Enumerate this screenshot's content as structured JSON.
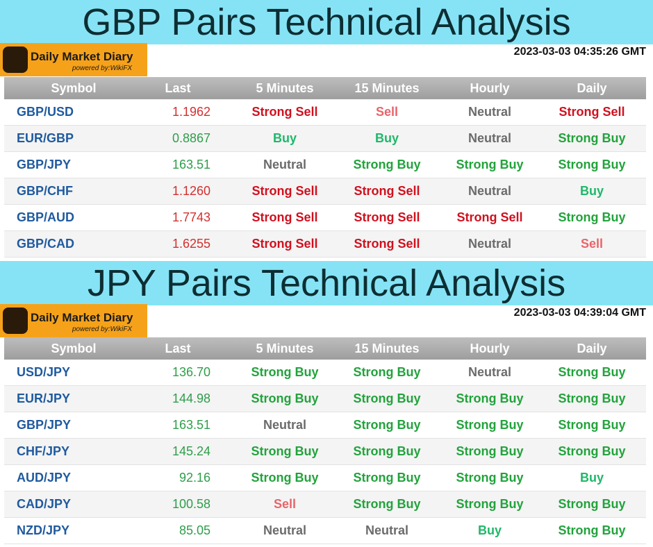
{
  "signal_colors": {
    "Strong Sell": "#d0101e",
    "Sell": "#e8646a",
    "Neutral": "#6b6b6b",
    "Buy": "#1fb86a",
    "Strong Buy": "#22a33c"
  },
  "sections": [
    {
      "title": "GBP Pairs Technical Analysis",
      "logo": {
        "name": "Daily Market Diary",
        "powered": "powered by:WikiFX"
      },
      "timestamp": "2023-03-03 04:35:26 GMT",
      "table": {
        "headers": [
          "Symbol",
          "Last",
          "5 Minutes",
          "15 Minutes",
          "Hourly",
          "Daily"
        ],
        "last_colors": [
          "#d32f2f",
          "#2e9e4a",
          "#2e9e4a",
          "#d32f2f",
          "#d32f2f",
          "#d32f2f"
        ],
        "rows": [
          [
            "GBP/USD",
            "1.1962",
            "Strong Sell",
            "Sell",
            "Neutral",
            "Strong Sell"
          ],
          [
            "EUR/GBP",
            "0.8867",
            "Buy",
            "Buy",
            "Neutral",
            "Strong Buy"
          ],
          [
            "GBP/JPY",
            "163.51",
            "Neutral",
            "Strong Buy",
            "Strong Buy",
            "Strong Buy"
          ],
          [
            "GBP/CHF",
            "1.1260",
            "Strong Sell",
            "Strong Sell",
            "Neutral",
            "Buy"
          ],
          [
            "GBP/AUD",
            "1.7743",
            "Strong Sell",
            "Strong Sell",
            "Strong Sell",
            "Strong Buy"
          ],
          [
            "GBP/CAD",
            "1.6255",
            "Strong Sell",
            "Strong Sell",
            "Neutral",
            "Sell"
          ]
        ]
      }
    },
    {
      "title": "JPY Pairs Technical Analysis",
      "logo": {
        "name": "Daily Market Diary",
        "powered": "powered by:WikiFX"
      },
      "timestamp": "2023-03-03 04:39:04 GMT",
      "table": {
        "headers": [
          "Symbol",
          "Last",
          "5 Minutes",
          "15 Minutes",
          "Hourly",
          "Daily"
        ],
        "last_colors": [
          "#2e9e4a",
          "#2e9e4a",
          "#2e9e4a",
          "#2e9e4a",
          "#2e9e4a",
          "#2e9e4a",
          "#2e9e4a"
        ],
        "rows": [
          [
            "USD/JPY",
            "136.70",
            "Strong Buy",
            "Strong Buy",
            "Neutral",
            "Strong Buy"
          ],
          [
            "EUR/JPY",
            "144.98",
            "Strong Buy",
            "Strong Buy",
            "Strong Buy",
            "Strong Buy"
          ],
          [
            "GBP/JPY",
            "163.51",
            "Neutral",
            "Strong Buy",
            "Strong Buy",
            "Strong Buy"
          ],
          [
            "CHF/JPY",
            "145.24",
            "Strong Buy",
            "Strong Buy",
            "Strong Buy",
            "Strong Buy"
          ],
          [
            "AUD/JPY",
            "92.16",
            "Strong Buy",
            "Strong Buy",
            "Strong Buy",
            "Buy"
          ],
          [
            "CAD/JPY",
            "100.58",
            "Sell",
            "Strong Buy",
            "Strong Buy",
            "Strong Buy"
          ],
          [
            "NZD/JPY",
            "85.05",
            "Neutral",
            "Neutral",
            "Buy",
            "Strong Buy"
          ]
        ]
      }
    }
  ]
}
